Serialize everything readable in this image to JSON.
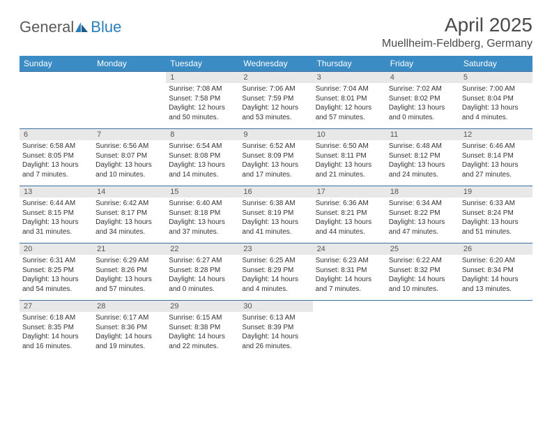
{
  "logo": {
    "text1": "General",
    "text2": "Blue"
  },
  "title": "April 2025",
  "location": "Muellheim-Feldberg, Germany",
  "colors": {
    "header_bg": "#3b8bc4",
    "header_text": "#ffffff",
    "row_border": "#3b6fa0",
    "daynum_bg": "#e8e8e8",
    "logo_gray": "#5a5a5a",
    "logo_blue": "#2a7fba",
    "title_color": "#4a4a4a"
  },
  "weekdays": [
    "Sunday",
    "Monday",
    "Tuesday",
    "Wednesday",
    "Thursday",
    "Friday",
    "Saturday"
  ],
  "weeks": [
    [
      {
        "n": "",
        "lines": [
          "",
          "",
          ""
        ]
      },
      {
        "n": "",
        "lines": [
          "",
          "",
          ""
        ]
      },
      {
        "n": "1",
        "lines": [
          "Sunrise: 7:08 AM",
          "Sunset: 7:58 PM",
          "Daylight: 12 hours and 50 minutes."
        ]
      },
      {
        "n": "2",
        "lines": [
          "Sunrise: 7:06 AM",
          "Sunset: 7:59 PM",
          "Daylight: 12 hours and 53 minutes."
        ]
      },
      {
        "n": "3",
        "lines": [
          "Sunrise: 7:04 AM",
          "Sunset: 8:01 PM",
          "Daylight: 12 hours and 57 minutes."
        ]
      },
      {
        "n": "4",
        "lines": [
          "Sunrise: 7:02 AM",
          "Sunset: 8:02 PM",
          "Daylight: 13 hours and 0 minutes."
        ]
      },
      {
        "n": "5",
        "lines": [
          "Sunrise: 7:00 AM",
          "Sunset: 8:04 PM",
          "Daylight: 13 hours and 4 minutes."
        ]
      }
    ],
    [
      {
        "n": "6",
        "lines": [
          "Sunrise: 6:58 AM",
          "Sunset: 8:05 PM",
          "Daylight: 13 hours and 7 minutes."
        ]
      },
      {
        "n": "7",
        "lines": [
          "Sunrise: 6:56 AM",
          "Sunset: 8:07 PM",
          "Daylight: 13 hours and 10 minutes."
        ]
      },
      {
        "n": "8",
        "lines": [
          "Sunrise: 6:54 AM",
          "Sunset: 8:08 PM",
          "Daylight: 13 hours and 14 minutes."
        ]
      },
      {
        "n": "9",
        "lines": [
          "Sunrise: 6:52 AM",
          "Sunset: 8:09 PM",
          "Daylight: 13 hours and 17 minutes."
        ]
      },
      {
        "n": "10",
        "lines": [
          "Sunrise: 6:50 AM",
          "Sunset: 8:11 PM",
          "Daylight: 13 hours and 21 minutes."
        ]
      },
      {
        "n": "11",
        "lines": [
          "Sunrise: 6:48 AM",
          "Sunset: 8:12 PM",
          "Daylight: 13 hours and 24 minutes."
        ]
      },
      {
        "n": "12",
        "lines": [
          "Sunrise: 6:46 AM",
          "Sunset: 8:14 PM",
          "Daylight: 13 hours and 27 minutes."
        ]
      }
    ],
    [
      {
        "n": "13",
        "lines": [
          "Sunrise: 6:44 AM",
          "Sunset: 8:15 PM",
          "Daylight: 13 hours and 31 minutes."
        ]
      },
      {
        "n": "14",
        "lines": [
          "Sunrise: 6:42 AM",
          "Sunset: 8:17 PM",
          "Daylight: 13 hours and 34 minutes."
        ]
      },
      {
        "n": "15",
        "lines": [
          "Sunrise: 6:40 AM",
          "Sunset: 8:18 PM",
          "Daylight: 13 hours and 37 minutes."
        ]
      },
      {
        "n": "16",
        "lines": [
          "Sunrise: 6:38 AM",
          "Sunset: 8:19 PM",
          "Daylight: 13 hours and 41 minutes."
        ]
      },
      {
        "n": "17",
        "lines": [
          "Sunrise: 6:36 AM",
          "Sunset: 8:21 PM",
          "Daylight: 13 hours and 44 minutes."
        ]
      },
      {
        "n": "18",
        "lines": [
          "Sunrise: 6:34 AM",
          "Sunset: 8:22 PM",
          "Daylight: 13 hours and 47 minutes."
        ]
      },
      {
        "n": "19",
        "lines": [
          "Sunrise: 6:33 AM",
          "Sunset: 8:24 PM",
          "Daylight: 13 hours and 51 minutes."
        ]
      }
    ],
    [
      {
        "n": "20",
        "lines": [
          "Sunrise: 6:31 AM",
          "Sunset: 8:25 PM",
          "Daylight: 13 hours and 54 minutes."
        ]
      },
      {
        "n": "21",
        "lines": [
          "Sunrise: 6:29 AM",
          "Sunset: 8:26 PM",
          "Daylight: 13 hours and 57 minutes."
        ]
      },
      {
        "n": "22",
        "lines": [
          "Sunrise: 6:27 AM",
          "Sunset: 8:28 PM",
          "Daylight: 14 hours and 0 minutes."
        ]
      },
      {
        "n": "23",
        "lines": [
          "Sunrise: 6:25 AM",
          "Sunset: 8:29 PM",
          "Daylight: 14 hours and 4 minutes."
        ]
      },
      {
        "n": "24",
        "lines": [
          "Sunrise: 6:23 AM",
          "Sunset: 8:31 PM",
          "Daylight: 14 hours and 7 minutes."
        ]
      },
      {
        "n": "25",
        "lines": [
          "Sunrise: 6:22 AM",
          "Sunset: 8:32 PM",
          "Daylight: 14 hours and 10 minutes."
        ]
      },
      {
        "n": "26",
        "lines": [
          "Sunrise: 6:20 AM",
          "Sunset: 8:34 PM",
          "Daylight: 14 hours and 13 minutes."
        ]
      }
    ],
    [
      {
        "n": "27",
        "lines": [
          "Sunrise: 6:18 AM",
          "Sunset: 8:35 PM",
          "Daylight: 14 hours and 16 minutes."
        ]
      },
      {
        "n": "28",
        "lines": [
          "Sunrise: 6:17 AM",
          "Sunset: 8:36 PM",
          "Daylight: 14 hours and 19 minutes."
        ]
      },
      {
        "n": "29",
        "lines": [
          "Sunrise: 6:15 AM",
          "Sunset: 8:38 PM",
          "Daylight: 14 hours and 22 minutes."
        ]
      },
      {
        "n": "30",
        "lines": [
          "Sunrise: 6:13 AM",
          "Sunset: 8:39 PM",
          "Daylight: 14 hours and 26 minutes."
        ]
      },
      {
        "n": "",
        "lines": [
          "",
          "",
          ""
        ]
      },
      {
        "n": "",
        "lines": [
          "",
          "",
          ""
        ]
      },
      {
        "n": "",
        "lines": [
          "",
          "",
          ""
        ]
      }
    ]
  ]
}
